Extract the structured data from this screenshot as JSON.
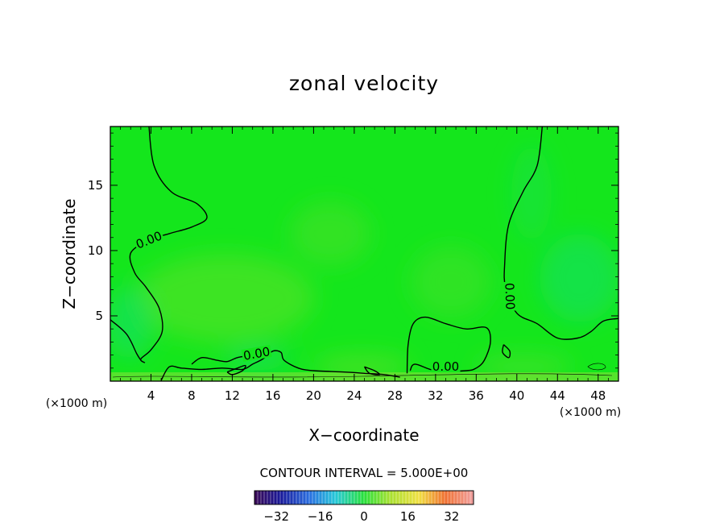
{
  "chart_data": {
    "type": "heatmap",
    "title": "zonal velocity",
    "xlabel": "X−coordinate",
    "ylabel": "Z−coordinate",
    "x_unit": "(×1000 m)",
    "z_unit": "(×1000 m)",
    "xlim": [
      0,
      50
    ],
    "ylim": [
      0,
      19.5
    ],
    "x_ticks": [
      4,
      8,
      12,
      16,
      20,
      24,
      28,
      32,
      36,
      40,
      44,
      48
    ],
    "y_ticks": [
      5,
      10,
      15
    ],
    "contour_interval_text": "CONTOUR INTERVAL = 5.000E+00",
    "contour_labels": [
      {
        "text": "0.00",
        "x": 3.8,
        "z": 10.8,
        "angle": -22
      },
      {
        "text": "0.00",
        "x": 14.4,
        "z": 2.1,
        "angle": -10
      },
      {
        "text": "0.00",
        "x": 33.0,
        "z": 1.1,
        "angle": 0
      },
      {
        "text": "0.00",
        "x": 39.3,
        "z": 6.5,
        "angle": 88
      }
    ],
    "zero_contours": [
      [
        [
          3.8,
          19.5
        ],
        [
          4.3,
          16.5
        ],
        [
          6.0,
          14.5
        ],
        [
          8.5,
          13.6
        ],
        [
          9.5,
          12.5
        ],
        [
          8.0,
          11.8
        ],
        [
          5.8,
          11.3
        ],
        [
          3.8,
          10.8
        ],
        [
          2.0,
          9.8
        ],
        [
          2.4,
          8.3
        ],
        [
          3.5,
          7.2
        ],
        [
          4.8,
          5.6
        ],
        [
          5.1,
          3.8
        ],
        [
          4.0,
          2.4
        ],
        [
          3.0,
          1.7
        ],
        [
          3.4,
          1.4
        ]
      ],
      [
        [
          0,
          4.7
        ],
        [
          1.6,
          3.6
        ],
        [
          2.6,
          2.1
        ],
        [
          3.0,
          1.6
        ]
      ],
      [
        [
          50,
          4.8
        ],
        [
          48.5,
          4.6
        ],
        [
          47.3,
          3.8
        ],
        [
          46.0,
          3.3
        ],
        [
          44.0,
          3.3
        ],
        [
          42.0,
          4.4
        ],
        [
          40.0,
          5.2
        ],
        [
          38.9,
          7.1
        ],
        [
          38.8,
          9.0
        ],
        [
          39.2,
          12.0
        ],
        [
          40.6,
          14.5
        ],
        [
          42.0,
          16.5
        ],
        [
          42.5,
          19.5
        ]
      ],
      [
        [
          5.0,
          0.05
        ],
        [
          5.8,
          1.1
        ],
        [
          7.0,
          1.0
        ],
        [
          9.0,
          0.9
        ],
        [
          11.0,
          1.0
        ],
        [
          13.0,
          0.9
        ],
        [
          14.0,
          1.3
        ],
        [
          15.0,
          1.7
        ],
        [
          16.0,
          2.3
        ],
        [
          16.8,
          2.2
        ],
        [
          17.1,
          1.6
        ],
        [
          18.5,
          1.0
        ],
        [
          20.0,
          0.8
        ],
        [
          23.0,
          0.7
        ],
        [
          25.0,
          0.6
        ],
        [
          27.0,
          0.5
        ],
        [
          28.5,
          0.3
        ]
      ],
      [
        [
          8.0,
          1.3
        ],
        [
          9.0,
          1.8
        ],
        [
          10.5,
          1.6
        ],
        [
          11.5,
          1.5
        ],
        [
          12.5,
          1.8
        ],
        [
          14.0,
          2.0
        ]
      ],
      [
        [
          11.5,
          0.7
        ],
        [
          12.5,
          1.0
        ],
        [
          13.3,
          1.2
        ],
        [
          13.0,
          0.8
        ],
        [
          12.0,
          0.5
        ],
        [
          11.5,
          0.7
        ]
      ],
      [
        [
          29.2,
          0.6
        ],
        [
          29.3,
          2.8
        ],
        [
          29.8,
          4.4
        ],
        [
          31.0,
          4.9
        ],
        [
          33.0,
          4.4
        ],
        [
          35.0,
          4.0
        ],
        [
          37.0,
          4.1
        ],
        [
          37.4,
          3.0
        ],
        [
          36.8,
          1.6
        ],
        [
          36.0,
          1.0
        ],
        [
          35.0,
          0.8
        ],
        [
          32.0,
          0.8
        ],
        [
          30.0,
          1.3
        ],
        [
          29.5,
          0.8
        ]
      ],
      [
        [
          38.7,
          2.8
        ],
        [
          39.3,
          2.3
        ],
        [
          39.2,
          1.8
        ],
        [
          38.6,
          2.2
        ],
        [
          38.7,
          2.8
        ]
      ],
      [
        [
          25.0,
          1.1
        ],
        [
          26.0,
          0.8
        ],
        [
          26.5,
          0.5
        ],
        [
          25.5,
          0.6
        ],
        [
          25.0,
          1.1
        ]
      ]
    ],
    "colorbar": {
      "range": [
        -40,
        40
      ],
      "ticks": [
        -32,
        -16,
        0,
        16,
        32
      ],
      "tick_labels": [
        "−32",
        "−16",
        "0",
        "16",
        "32"
      ]
    },
    "colors": {
      "background_field": "#14e61c",
      "contour_line": "#000000",
      "frame": "#000000"
    }
  }
}
